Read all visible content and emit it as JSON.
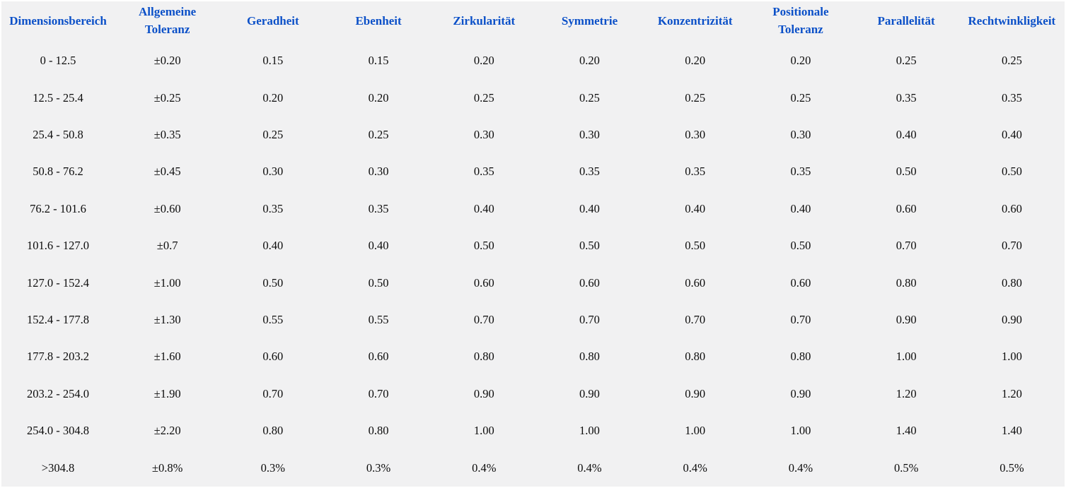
{
  "colors": {
    "header_text": "#0b50c8",
    "cell_text": "#0c0c0c",
    "table_background": "#f1f1f2",
    "page_border": "#ffffff"
  },
  "table": {
    "columns": [
      {
        "label": "Dimensionsbereich"
      },
      {
        "label": "Allgemeine Toleranz"
      },
      {
        "label": "Geradheit"
      },
      {
        "label": "Ebenheit"
      },
      {
        "label": "Zirkularität"
      },
      {
        "label": "Symmetrie"
      },
      {
        "label": "Konzentrizität"
      },
      {
        "label": "Positionale Toleranz"
      },
      {
        "label": "Parallelität"
      },
      {
        "label": "Rechtwinkligkeit"
      }
    ],
    "rows": [
      [
        "0 - 12.5",
        "±0.20",
        "0.15",
        "0.15",
        "0.20",
        "0.20",
        "0.20",
        "0.20",
        "0.25",
        "0.25"
      ],
      [
        "12.5 - 25.4",
        "±0.25",
        "0.20",
        "0.20",
        "0.25",
        "0.25",
        "0.25",
        "0.25",
        "0.35",
        "0.35"
      ],
      [
        "25.4 - 50.8",
        "±0.35",
        "0.25",
        "0.25",
        "0.30",
        "0.30",
        "0.30",
        "0.30",
        "0.40",
        "0.40"
      ],
      [
        "50.8 - 76.2",
        "±0.45",
        "0.30",
        "0.30",
        "0.35",
        "0.35",
        "0.35",
        "0.35",
        "0.50",
        "0.50"
      ],
      [
        "76.2 - 101.6",
        "±0.60",
        "0.35",
        "0.35",
        "0.40",
        "0.40",
        "0.40",
        "0.40",
        "0.60",
        "0.60"
      ],
      [
        "101.6 - 127.0",
        "±0.7",
        "0.40",
        "0.40",
        "0.50",
        "0.50",
        "0.50",
        "0.50",
        "0.70",
        "0.70"
      ],
      [
        "127.0 - 152.4",
        "±1.00",
        "0.50",
        "0.50",
        "0.60",
        "0.60",
        "0.60",
        "0.60",
        "0.80",
        "0.80"
      ],
      [
        "152.4 - 177.8",
        "±1.30",
        "0.55",
        "0.55",
        "0.70",
        "0.70",
        "0.70",
        "0.70",
        "0.90",
        "0.90"
      ],
      [
        "177.8 - 203.2",
        "±1.60",
        "0.60",
        "0.60",
        "0.80",
        "0.80",
        "0.80",
        "0.80",
        "1.00",
        "1.00"
      ],
      [
        "203.2 - 254.0",
        "±1.90",
        "0.70",
        "0.70",
        "0.90",
        "0.90",
        "0.90",
        "0.90",
        "1.20",
        "1.20"
      ],
      [
        "254.0 - 304.8",
        "±2.20",
        "0.80",
        "0.80",
        "1.00",
        "1.00",
        "1.00",
        "1.00",
        "1.40",
        "1.40"
      ],
      [
        ">304.8",
        "±0.8%",
        "0.3%",
        "0.3%",
        "0.4%",
        "0.4%",
        "0.4%",
        "0.4%",
        "0.5%",
        "0.5%"
      ]
    ]
  }
}
